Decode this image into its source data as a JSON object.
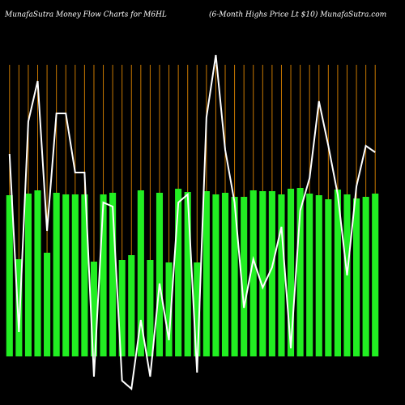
{
  "chart_data": {
    "type": "bar_line",
    "title": "MunafaSutra  Money Flow  Charts for M6HL",
    "subtitle": "(6-Month Highs Price   Lt $10) MunafaSutra.com",
    "grid": true,
    "grid_color": "#c87800",
    "background": "#000000",
    "ylim": [
      0,
      400
    ],
    "y2lim": [
      0,
      400
    ],
    "series": [
      {
        "name": "Money Flow",
        "type": "bar",
        "color": "#22ee22",
        "values": [
          199,
          120,
          201,
          205,
          128,
          202,
          200,
          200,
          200,
          117,
          200,
          202,
          119,
          125,
          205,
          119,
          202,
          116,
          207,
          203,
          116,
          204,
          200,
          202,
          197,
          197,
          205,
          204,
          204,
          200,
          207,
          208,
          201,
          199,
          194,
          206,
          200,
          195,
          197,
          201
        ]
      },
      {
        "name": "Price",
        "type": "line",
        "axis": "y2",
        "color": "#ffffff",
        "values": [
          250,
          30,
          290,
          340,
          155,
          300,
          300,
          227,
          227,
          -25,
          190,
          185,
          -30,
          -40,
          45,
          -25,
          90,
          20,
          190,
          200,
          -20,
          295,
          372,
          255,
          190,
          60,
          120,
          85,
          110,
          160,
          10,
          180,
          220,
          315,
          260,
          200,
          100,
          210,
          260,
          252
        ]
      }
    ]
  }
}
